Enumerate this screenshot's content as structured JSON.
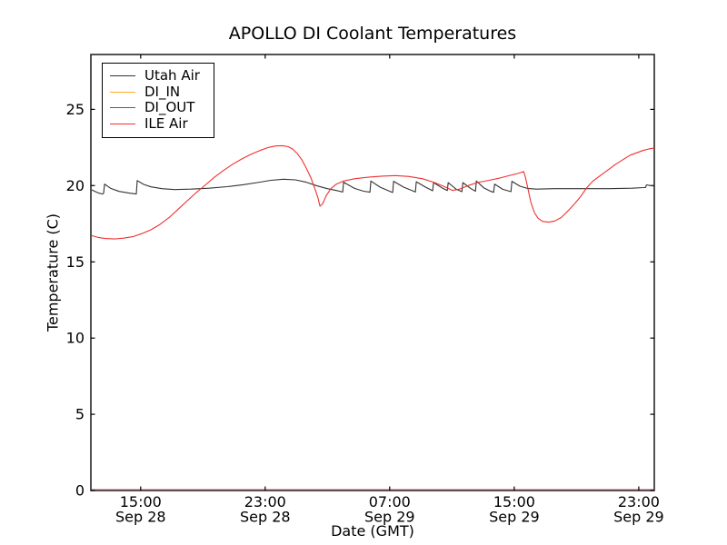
{
  "chart_data": {
    "type": "line",
    "title": "APOLLO DI Coolant Temperatures",
    "xlabel": "Date (GMT)",
    "ylabel": "Temperature (C)",
    "grid": false,
    "legend_position": "upper left",
    "x_unit": "hours since Sep 28 00:00 GMT",
    "xlim_hours": [
      11.8,
      48.0
    ],
    "ylim": [
      0,
      28.6
    ],
    "y_ticks": [
      0,
      5,
      10,
      15,
      20,
      25
    ],
    "x_ticks": [
      {
        "t": 15,
        "time": "15:00",
        "date": "Sep 28"
      },
      {
        "t": 23,
        "time": "23:00",
        "date": "Sep 28"
      },
      {
        "t": 31,
        "time": "07:00",
        "date": "Sep 29"
      },
      {
        "t": 39,
        "time": "15:00",
        "date": "Sep 29"
      },
      {
        "t": 47,
        "time": "23:00",
        "date": "Sep 29"
      }
    ],
    "series": [
      {
        "name": "Utah Air",
        "color": "#333333",
        "points": [
          [
            11.86,
            19.72
          ],
          [
            12.09,
            19.6
          ],
          [
            12.33,
            19.5
          ],
          [
            12.56,
            19.45
          ],
          [
            12.62,
            19.5
          ],
          [
            12.68,
            20.1
          ],
          [
            13.08,
            19.82
          ],
          [
            13.61,
            19.62
          ],
          [
            14.31,
            19.5
          ],
          [
            14.72,
            19.45
          ],
          [
            14.78,
            20.33
          ],
          [
            15.19,
            20.08
          ],
          [
            15.66,
            19.92
          ],
          [
            16.36,
            19.8
          ],
          [
            17.17,
            19.74
          ],
          [
            18.23,
            19.77
          ],
          [
            19.39,
            19.83
          ],
          [
            20.56,
            19.93
          ],
          [
            21.61,
            20.06
          ],
          [
            22.49,
            20.2
          ],
          [
            23.37,
            20.35
          ],
          [
            24.18,
            20.42
          ],
          [
            24.94,
            20.38
          ],
          [
            25.64,
            20.22
          ],
          [
            26.35,
            19.98
          ],
          [
            26.99,
            19.8
          ],
          [
            27.57,
            19.68
          ],
          [
            27.98,
            19.58
          ],
          [
            28.04,
            20.22
          ],
          [
            28.74,
            19.82
          ],
          [
            29.32,
            19.63
          ],
          [
            29.73,
            19.57
          ],
          [
            29.79,
            20.3
          ],
          [
            30.38,
            19.9
          ],
          [
            31.02,
            19.62
          ],
          [
            31.19,
            19.55
          ],
          [
            31.25,
            20.28
          ],
          [
            31.89,
            19.9
          ],
          [
            32.54,
            19.63
          ],
          [
            32.65,
            19.58
          ],
          [
            32.71,
            20.25
          ],
          [
            33.3,
            19.9
          ],
          [
            33.76,
            19.66
          ],
          [
            33.82,
            20.2
          ],
          [
            34.35,
            19.86
          ],
          [
            34.7,
            19.68
          ],
          [
            34.76,
            20.2
          ],
          [
            35.28,
            19.76
          ],
          [
            35.64,
            19.6
          ],
          [
            35.7,
            20.2
          ],
          [
            36.22,
            19.8
          ],
          [
            36.51,
            19.63
          ],
          [
            36.57,
            20.3
          ],
          [
            37.04,
            19.86
          ],
          [
            37.5,
            19.62
          ],
          [
            37.68,
            19.56
          ],
          [
            37.74,
            20.1
          ],
          [
            38.26,
            19.76
          ],
          [
            38.79,
            19.6
          ],
          [
            38.85,
            20.28
          ],
          [
            39.37,
            19.96
          ],
          [
            39.84,
            19.82
          ],
          [
            40.43,
            19.77
          ],
          [
            41.6,
            19.8
          ],
          [
            43.35,
            19.8
          ],
          [
            45.1,
            19.8
          ],
          [
            46.57,
            19.83
          ],
          [
            47.32,
            19.87
          ],
          [
            47.44,
            19.88
          ],
          [
            47.5,
            20.05
          ],
          [
            47.73,
            20.0
          ],
          [
            48.0,
            19.97
          ]
        ]
      },
      {
        "name": "DI_IN",
        "color": "#ffaa22",
        "points": [
          [
            11.86,
            0
          ],
          [
            48.0,
            0
          ]
        ]
      },
      {
        "name": "DI_OUT",
        "color": "#8e3d97",
        "points": [
          [
            11.86,
            0
          ],
          [
            48.0,
            0
          ]
        ]
      },
      {
        "name": "ILE Air",
        "color": "#f03030",
        "points": [
          [
            11.86,
            16.72
          ],
          [
            12.27,
            16.6
          ],
          [
            12.73,
            16.53
          ],
          [
            13.32,
            16.5
          ],
          [
            13.9,
            16.55
          ],
          [
            14.49,
            16.65
          ],
          [
            15.07,
            16.85
          ],
          [
            15.66,
            17.1
          ],
          [
            16.24,
            17.45
          ],
          [
            16.82,
            17.9
          ],
          [
            17.41,
            18.45
          ],
          [
            17.99,
            19.0
          ],
          [
            18.58,
            19.55
          ],
          [
            19.16,
            20.05
          ],
          [
            19.74,
            20.55
          ],
          [
            20.33,
            21.0
          ],
          [
            20.91,
            21.4
          ],
          [
            21.5,
            21.75
          ],
          [
            22.08,
            22.05
          ],
          [
            22.66,
            22.3
          ],
          [
            23.19,
            22.5
          ],
          [
            23.66,
            22.6
          ],
          [
            24.13,
            22.62
          ],
          [
            24.48,
            22.55
          ],
          [
            24.77,
            22.4
          ],
          [
            25.06,
            22.1
          ],
          [
            25.35,
            21.7
          ],
          [
            25.64,
            21.15
          ],
          [
            25.94,
            20.5
          ],
          [
            26.23,
            19.7
          ],
          [
            26.4,
            19.15
          ],
          [
            26.52,
            18.65
          ],
          [
            26.69,
            18.8
          ],
          [
            26.93,
            19.35
          ],
          [
            27.22,
            19.8
          ],
          [
            27.57,
            20.1
          ],
          [
            28.04,
            20.3
          ],
          [
            28.74,
            20.45
          ],
          [
            29.62,
            20.55
          ],
          [
            30.49,
            20.62
          ],
          [
            31.37,
            20.66
          ],
          [
            32.25,
            20.6
          ],
          [
            33.12,
            20.45
          ],
          [
            33.88,
            20.2
          ],
          [
            34.58,
            19.9
          ],
          [
            35.05,
            19.68
          ],
          [
            35.52,
            19.78
          ],
          [
            36.04,
            20.0
          ],
          [
            36.63,
            20.2
          ],
          [
            37.39,
            20.35
          ],
          [
            38.09,
            20.5
          ],
          [
            38.67,
            20.65
          ],
          [
            39.26,
            20.8
          ],
          [
            39.61,
            20.92
          ],
          [
            39.72,
            20.55
          ],
          [
            39.9,
            19.7
          ],
          [
            40.07,
            18.9
          ],
          [
            40.31,
            18.2
          ],
          [
            40.54,
            17.85
          ],
          [
            40.83,
            17.65
          ],
          [
            41.24,
            17.6
          ],
          [
            41.6,
            17.68
          ],
          [
            42.01,
            17.9
          ],
          [
            42.42,
            18.3
          ],
          [
            42.83,
            18.75
          ],
          [
            43.24,
            19.25
          ],
          [
            43.65,
            19.85
          ],
          [
            44.06,
            20.3
          ],
          [
            44.52,
            20.65
          ],
          [
            44.99,
            21.0
          ],
          [
            45.52,
            21.4
          ],
          [
            45.98,
            21.7
          ],
          [
            46.45,
            22.0
          ],
          [
            46.86,
            22.15
          ],
          [
            47.27,
            22.3
          ],
          [
            47.62,
            22.4
          ],
          [
            47.91,
            22.45
          ],
          [
            48.0,
            22.45
          ]
        ]
      }
    ]
  }
}
